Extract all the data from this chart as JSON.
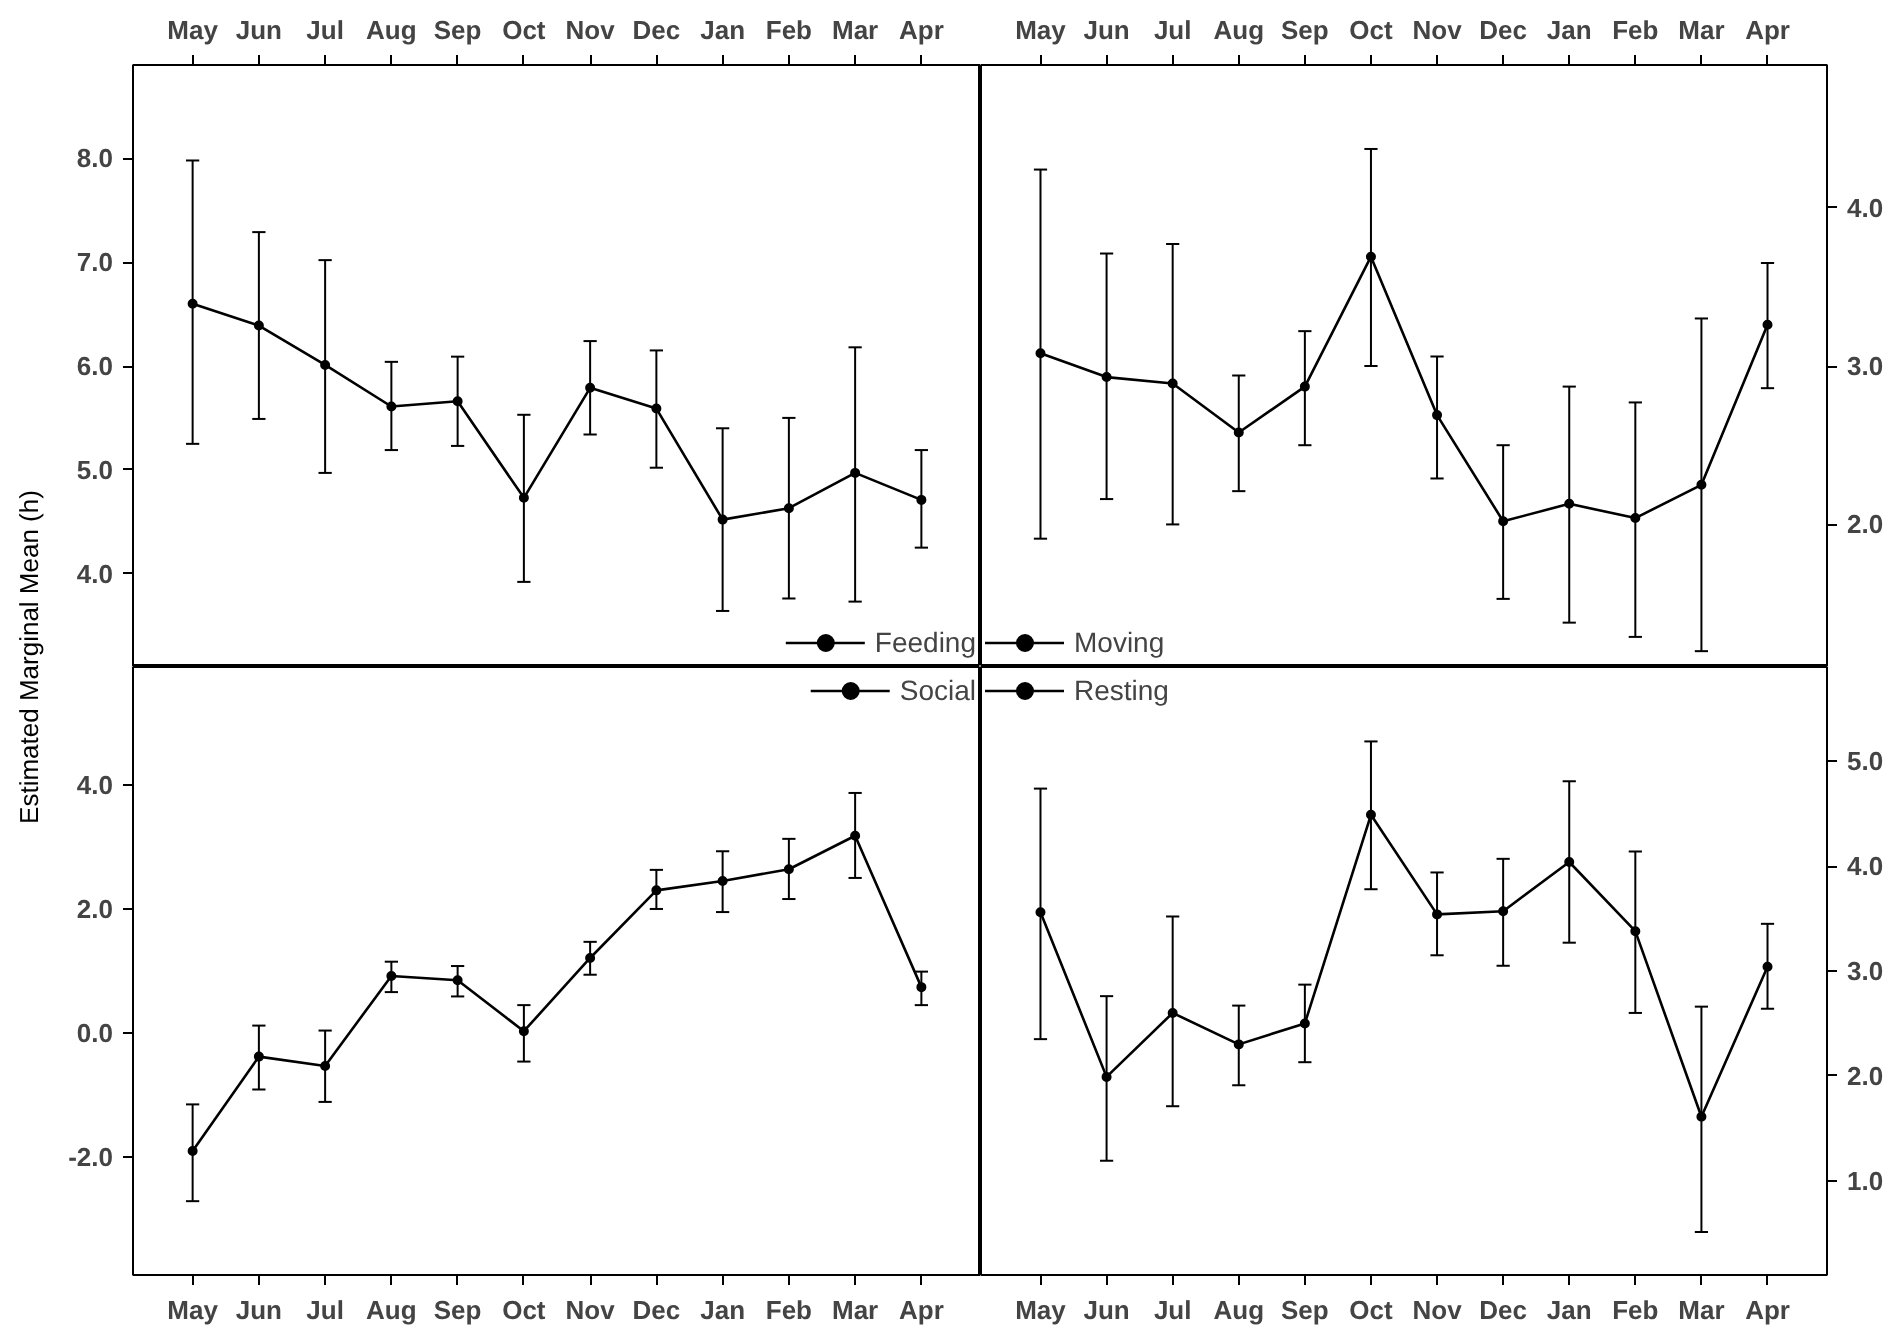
{
  "chart_data": [
    {
      "type": "line",
      "ylabel": "Estimated Marginal Mean (h)",
      "categories": [
        "May",
        "Jun",
        "Jul",
        "Aug",
        "Sep",
        "Oct",
        "Nov",
        "Dec",
        "Jan",
        "Feb",
        "Mar",
        "Apr"
      ],
      "ylim": [
        3.1,
        8.9
      ],
      "yticks": [
        {
          "value": 4,
          "label": "4.0"
        },
        {
          "value": 5,
          "label": "5.0"
        },
        {
          "value": 6,
          "label": "6.0"
        },
        {
          "value": 7,
          "label": "7.0"
        },
        {
          "value": 8,
          "label": "8.0"
        }
      ],
      "grid": false,
      "legend": "bottom right",
      "marker": "circle",
      "line_style": "solid",
      "series": [
        {
          "name": "Feeding",
          "color": "#000000",
          "values": [
            6.6,
            6.39,
            6.01,
            5.61,
            5.66,
            4.73,
            5.79,
            5.59,
            4.52,
            4.63,
            4.97,
            4.71
          ],
          "errors": [
            [
              5.25,
              7.98
            ],
            [
              5.49,
              7.29
            ],
            [
              4.97,
              7.02
            ],
            [
              5.19,
              6.04
            ],
            [
              5.23,
              6.09
            ],
            [
              3.92,
              5.53
            ],
            [
              5.34,
              6.24
            ],
            [
              5.02,
              6.15
            ],
            [
              3.64,
              5.4
            ],
            [
              3.76,
              5.5
            ],
            [
              3.73,
              6.18
            ],
            [
              4.25,
              5.19
            ]
          ]
        }
      ]
    },
    {
      "type": "line",
      "categories": [
        "May",
        "Jun",
        "Jul",
        "Aug",
        "Sep",
        "Oct",
        "Nov",
        "Dec",
        "Jan",
        "Feb",
        "Mar",
        "Apr"
      ],
      "ylim": [
        1.1,
        4.9
      ],
      "yticks": [
        {
          "value": 2,
          "label": "2.0"
        },
        {
          "value": 3,
          "label": "3.0"
        },
        {
          "value": 4,
          "label": "4.0"
        }
      ],
      "grid": false,
      "legend": "bottom left",
      "marker": "circle",
      "line_style": "solid",
      "series": [
        {
          "name": "Moving",
          "color": "#000000",
          "values": [
            3.08,
            2.93,
            2.89,
            2.58,
            2.87,
            3.69,
            2.69,
            2.02,
            2.13,
            2.04,
            2.25,
            3.26
          ],
          "errors": [
            [
              1.91,
              4.24
            ],
            [
              2.16,
              3.71
            ],
            [
              2.0,
              3.77
            ],
            [
              2.21,
              2.94
            ],
            [
              2.5,
              3.22
            ],
            [
              3.0,
              4.37
            ],
            [
              2.29,
              3.06
            ],
            [
              1.53,
              2.5
            ],
            [
              1.38,
              2.87
            ],
            [
              1.29,
              2.77
            ],
            [
              1.2,
              3.3
            ],
            [
              2.86,
              3.65
            ]
          ]
        }
      ]
    },
    {
      "type": "line",
      "categories": [
        "May",
        "Jun",
        "Jul",
        "Aug",
        "Sep",
        "Oct",
        "Nov",
        "Dec",
        "Jan",
        "Feb",
        "Mar",
        "Apr"
      ],
      "ylim": [
        -3.9,
        5.9
      ],
      "yticks": [
        {
          "value": -2,
          "label": "-2.0"
        },
        {
          "value": 0,
          "label": "0.0"
        },
        {
          "value": 2,
          "label": "2.0"
        },
        {
          "value": 4,
          "label": "4.0"
        }
      ],
      "grid": false,
      "legend": "top right",
      "marker": "circle",
      "line_style": "solid",
      "series": [
        {
          "name": "Social",
          "color": "#000000",
          "values": [
            -1.9,
            -0.38,
            -0.53,
            0.92,
            0.85,
            0.03,
            1.21,
            2.3,
            2.45,
            2.64,
            3.18,
            0.74
          ],
          "errors": [
            [
              -2.71,
              -1.15
            ],
            [
              -0.91,
              0.12
            ],
            [
              -1.11,
              0.04
            ],
            [
              0.66,
              1.15
            ],
            [
              0.59,
              1.08
            ],
            [
              -0.46,
              0.45
            ],
            [
              0.94,
              1.47
            ],
            [
              2.0,
              2.63
            ],
            [
              1.95,
              2.93
            ],
            [
              2.16,
              3.13
            ],
            [
              2.5,
              3.87
            ],
            [
              0.45,
              0.99
            ]
          ]
        }
      ]
    },
    {
      "type": "line",
      "categories": [
        "May",
        "Jun",
        "Jul",
        "Aug",
        "Sep",
        "Oct",
        "Nov",
        "Dec",
        "Jan",
        "Feb",
        "Mar",
        "Apr"
      ],
      "ylim": [
        0.1,
        5.9
      ],
      "yticks": [
        {
          "value": 1,
          "label": "1.0"
        },
        {
          "value": 2,
          "label": "2.0"
        },
        {
          "value": 3,
          "label": "3.0"
        },
        {
          "value": 4,
          "label": "4.0"
        },
        {
          "value": 5,
          "label": "5.0"
        }
      ],
      "grid": false,
      "legend": "top left",
      "marker": "circle",
      "line_style": "solid",
      "series": [
        {
          "name": "Resting",
          "color": "#000000",
          "values": [
            3.56,
            1.99,
            2.6,
            2.3,
            2.5,
            4.49,
            3.54,
            3.57,
            4.04,
            3.38,
            1.61,
            3.04
          ],
          "errors": [
            [
              2.35,
              4.74
            ],
            [
              1.19,
              2.76
            ],
            [
              1.71,
              3.52
            ],
            [
              1.91,
              2.67
            ],
            [
              2.13,
              2.87
            ],
            [
              3.78,
              5.19
            ],
            [
              3.15,
              3.94
            ],
            [
              3.05,
              4.07
            ],
            [
              3.27,
              4.81
            ],
            [
              2.6,
              4.14
            ],
            [
              0.51,
              2.66
            ],
            [
              2.64,
              3.45
            ]
          ]
        }
      ]
    }
  ]
}
